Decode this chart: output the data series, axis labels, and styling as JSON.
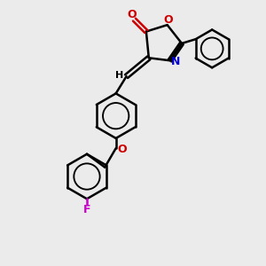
{
  "bg_color": "#ebebeb",
  "bond_color": "#000000",
  "O_color": "#cc0000",
  "N_color": "#0000cc",
  "F_color": "#cc00cc",
  "line_width": 1.8,
  "figsize": [
    3.0,
    3.0
  ],
  "dpi": 100,
  "xlim": [
    0,
    10
  ],
  "ylim": [
    0,
    10
  ]
}
